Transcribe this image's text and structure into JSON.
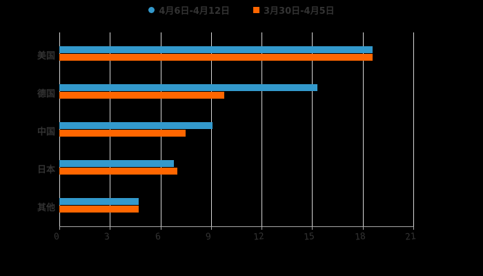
{
  "chart_data": {
    "type": "bar",
    "orientation": "horizontal",
    "title": "",
    "categories": [
      "美国",
      "德国",
      "中国",
      "日本",
      "其他"
    ],
    "series": [
      {
        "name": "4月6日-4月12日",
        "color": "#3399cc",
        "values": [
          18.6,
          15.3,
          9.1,
          6.8,
          4.7
        ]
      },
      {
        "name": "3月30日-4月5日",
        "color": "#ff6600",
        "values": [
          18.6,
          9.8,
          7.5,
          7.0,
          4.7
        ]
      }
    ],
    "xlabel": "",
    "ylabel": "",
    "xlim": [
      0,
      21
    ],
    "xticks": [
      "0",
      "3",
      "6",
      "9",
      "12",
      "15",
      "18",
      "21"
    ],
    "grid": true,
    "legend_position": "top"
  },
  "legend": {
    "series1": "4月6日-4月12日",
    "series2": "3月30日-4月5日"
  }
}
